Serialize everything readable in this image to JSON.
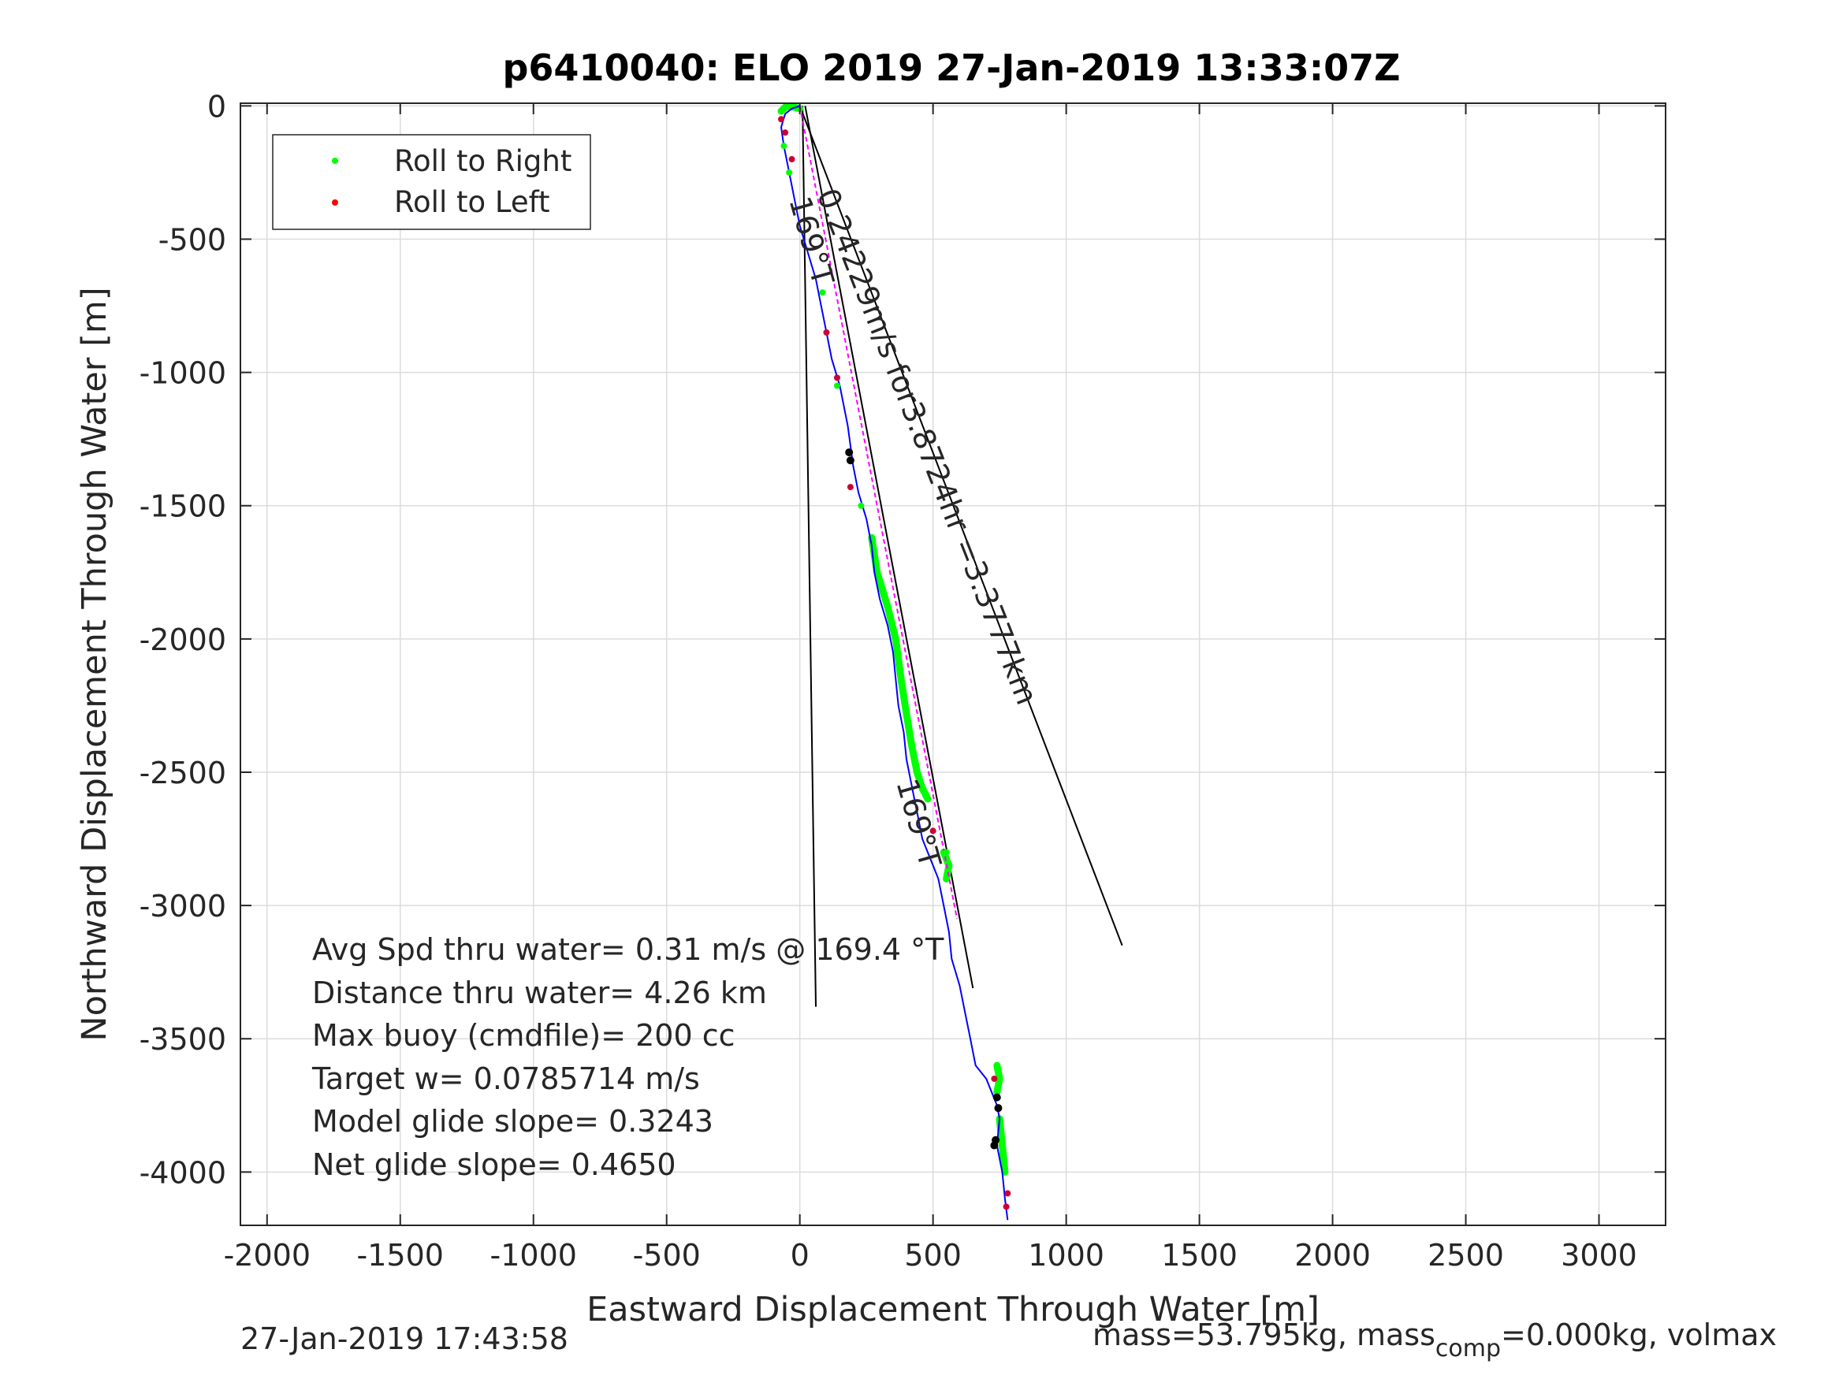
{
  "chart_data": {
    "type": "line",
    "title": "p6410040: ELO 2019 27-Jan-2019 13:33:07Z",
    "xlabel": "Eastward Displacement Through Water [m]",
    "ylabel": "Northward Displacement Through Water [m]",
    "xlim": [
      -2100,
      3250
    ],
    "ylim": [
      -4200,
      10
    ],
    "xticks": [
      -2000,
      -1500,
      -1000,
      -500,
      0,
      500,
      1000,
      1500,
      2000,
      2500,
      3000
    ],
    "xtick_labels": [
      "-2000",
      "-1500",
      "-1000",
      "-500",
      "0",
      "500",
      "1000",
      "1500",
      "2000",
      "2500",
      "3000"
    ],
    "yticks": [
      0,
      -500,
      -1000,
      -1500,
      -2000,
      -2500,
      -3000,
      -3500,
      -4000
    ],
    "ytick_labels": [
      "0",
      "-500",
      "-1000",
      "-1500",
      "-2000",
      "-2500",
      "-3000",
      "-3500",
      "-4000"
    ],
    "grid": true,
    "legend_position": "top-left",
    "legend": [
      {
        "label": "Roll to Right",
        "color": "#00ff00"
      },
      {
        "label": "Roll to Left",
        "color": "#ff0000"
      }
    ],
    "track": {
      "color": "#0000ff",
      "x": [
        0,
        -30,
        -55,
        -70,
        -60,
        -40,
        -20,
        0,
        30,
        60,
        80,
        100,
        120,
        150,
        180,
        200,
        220,
        250,
        270,
        280,
        300,
        330,
        350,
        360,
        370,
        390,
        400,
        420,
        440,
        460,
        500,
        520,
        540,
        560,
        570,
        600,
        620,
        640,
        650,
        660,
        700,
        720,
        740,
        750,
        740,
        750,
        760,
        770,
        780
      ],
      "y": [
        0,
        -10,
        -30,
        -80,
        -150,
        -250,
        -350,
        -450,
        -550,
        -650,
        -750,
        -850,
        -950,
        -1050,
        -1200,
        -1350,
        -1450,
        -1550,
        -1650,
        -1750,
        -1850,
        -1950,
        -2050,
        -2150,
        -2250,
        -2350,
        -2450,
        -2550,
        -2650,
        -2750,
        -2850,
        -2900,
        -3000,
        -3100,
        -3200,
        -3300,
        -3400,
        -3500,
        -3550,
        -3600,
        -3650,
        -3700,
        -3750,
        -3800,
        -3900,
        -3950,
        -4000,
        -4100,
        -4180
      ]
    },
    "roll_right_segments": [
      {
        "x": [
          270,
          290,
          330,
          360,
          380,
          400,
          420,
          440,
          460,
          480
        ],
        "y": [
          -1620,
          -1750,
          -1880,
          -2000,
          -2150,
          -2280,
          -2400,
          -2500,
          -2560,
          -2600
        ]
      },
      {
        "x": [
          540,
          560,
          550
        ],
        "y": [
          -2800,
          -2850,
          -2900
        ]
      },
      {
        "x": [
          740,
          750,
          740
        ],
        "y": [
          -3600,
          -3650,
          -3700
        ]
      },
      {
        "x": [
          750,
          760,
          770
        ],
        "y": [
          -3800,
          -3900,
          -4000
        ]
      },
      {
        "x": [
          -70,
          -50,
          -20,
          0
        ],
        "y": [
          -20,
          0,
          -5,
          -10
        ]
      }
    ],
    "roll_right_points": {
      "x": [
        -60,
        -40,
        85,
        140,
        230,
        550
      ],
      "y": [
        -150,
        -250,
        -700,
        -1050,
        -1500,
        -2800
      ]
    },
    "roll_left_points": {
      "x": [
        -70,
        -55,
        -30,
        100,
        140,
        190,
        500,
        730,
        780,
        775
      ],
      "y": [
        -50,
        -100,
        -200,
        -850,
        -1020,
        -1430,
        -2720,
        -3650,
        -4080,
        -4130
      ]
    },
    "black_points": {
      "x": [
        185,
        190,
        740,
        745,
        735,
        730
      ],
      "y": [
        -1300,
        -1330,
        -3720,
        -3760,
        -3880,
        -3900
      ]
    },
    "mean_track": {
      "color": "#ff00ff",
      "x": [
        0,
        590
      ],
      "y": [
        0,
        -3050
      ]
    },
    "reference_lines": [
      {
        "x": [
          0,
          1210
        ],
        "y": [
          0,
          -3150
        ]
      },
      {
        "x": [
          10,
          60
        ],
        "y": [
          0,
          -3380
        ]
      },
      {
        "x": [
          20,
          650
        ],
        "y": [
          0,
          -3310
        ]
      }
    ],
    "annotations": {
      "current_label": "0.24229m/s for3.8724hr =3.3777km",
      "heading_label_1": "169°T",
      "heading_label_2": "169°T"
    },
    "stats": [
      "Avg Spd thru water=  0.31 m/s @ 169.4  °T",
      "Distance thru water=  4.26 km",
      "Max buoy (cmdfile)= 200 cc",
      "Target w= 0.0785714 m/s",
      "Model glide slope= 0.3243",
      "Net glide slope= 0.4650"
    ]
  },
  "footer": {
    "timestamp": "27-Jan-2019 17:43:58",
    "mass_prefix": "mass=53.795kg, mass",
    "mass_sub": "comp",
    "mass_suffix": "=0.000kg, volmax"
  }
}
